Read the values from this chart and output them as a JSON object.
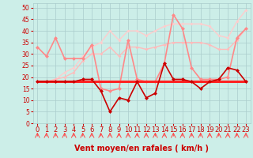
{
  "title": "Vent moyen/en rafales ( km/h )",
  "background_color": "#cceee8",
  "grid_color": "#aacccc",
  "x_labels": [
    "0",
    "1",
    "2",
    "3",
    "4",
    "5",
    "6",
    "7",
    "8",
    "9",
    "10",
    "11",
    "12",
    "13",
    "14",
    "15",
    "16",
    "17",
    "18",
    "19",
    "20",
    "21",
    "22",
    "23"
  ],
  "ylim": [
    0,
    52
  ],
  "yticks": [
    0,
    5,
    10,
    15,
    20,
    25,
    30,
    35,
    40,
    45,
    50
  ],
  "series": [
    {
      "name": "flat_bright",
      "values": [
        18,
        18,
        18,
        18,
        18,
        18,
        18,
        18,
        18,
        18,
        18,
        18,
        18,
        18,
        18,
        18,
        18,
        18,
        18,
        18,
        18,
        18,
        18,
        18
      ],
      "color": "#ff2222",
      "linewidth": 2.2,
      "marker": null,
      "zorder": 8
    },
    {
      "name": "flat_medium",
      "values": [
        18,
        18,
        18,
        18,
        18,
        18,
        18,
        18,
        18,
        18,
        18,
        18,
        18,
        18,
        18,
        18,
        18,
        18,
        18,
        18,
        18,
        18,
        18,
        18
      ],
      "color": "#ff6666",
      "linewidth": 1.5,
      "marker": null,
      "zorder": 7
    },
    {
      "name": "wind_speed_dark",
      "values": [
        18,
        18,
        18,
        18,
        18,
        19,
        19,
        14,
        5,
        11,
        10,
        18,
        11,
        13,
        26,
        19,
        19,
        18,
        15,
        18,
        19,
        24,
        23,
        18
      ],
      "color": "#cc0000",
      "linewidth": 1.2,
      "marker": "D",
      "markersize": 2.5,
      "zorder": 9
    },
    {
      "name": "gust_low",
      "values": [
        33,
        29,
        37,
        28,
        28,
        28,
        34,
        15,
        14,
        15,
        36,
        19,
        18,
        18,
        26,
        47,
        41,
        24,
        19,
        19,
        19,
        20,
        37,
        41
      ],
      "color": "#ff8888",
      "linewidth": 1.2,
      "marker": "D",
      "markersize": 2.5,
      "zorder": 6
    },
    {
      "name": "gust_high",
      "values": [
        18,
        18,
        19,
        20,
        22,
        27,
        30,
        30,
        33,
        29,
        33,
        33,
        32,
        33,
        34,
        35,
        35,
        35,
        35,
        34,
        32,
        32,
        36,
        41
      ],
      "color": "#ffbbbb",
      "linewidth": 1.0,
      "marker": "D",
      "markersize": 2.0,
      "zorder": 2
    },
    {
      "name": "upper_envelope",
      "values": [
        18,
        18,
        19,
        22,
        24,
        29,
        33,
        35,
        40,
        36,
        40,
        40,
        38,
        40,
        42,
        43,
        43,
        43,
        43,
        42,
        38,
        37,
        44,
        49
      ],
      "color": "#ffcccc",
      "linewidth": 1.0,
      "marker": "D",
      "markersize": 2.0,
      "zorder": 1
    }
  ],
  "arrow_color": "#ff4444",
  "xlabel_fontsize": 6,
  "tick_fontsize": 5.5
}
